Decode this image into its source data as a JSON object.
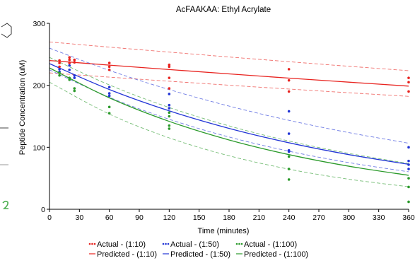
{
  "chart_data": {
    "type": "scatter",
    "title": "AcFAAKAA: Ethyl Acrylate",
    "xlabel": "Time (minutes)",
    "ylabel": "Peptide Concentration (uM)",
    "xlim": [
      0,
      360
    ],
    "ylim": [
      0,
      300
    ],
    "xticks": [
      0,
      30,
      60,
      90,
      120,
      150,
      180,
      210,
      240,
      270,
      300,
      330,
      360
    ],
    "yticks": [
      0,
      100,
      200,
      300
    ],
    "grid": false,
    "legend_position": "bottom",
    "series": [
      {
        "name": "Actual - (1:10)",
        "kind": "points",
        "color": "#e8231f",
        "points": [
          [
            10,
            240
          ],
          [
            10,
            236
          ],
          [
            10,
            230
          ],
          [
            20,
            245
          ],
          [
            20,
            241
          ],
          [
            20,
            236
          ],
          [
            25,
            241
          ],
          [
            25,
            237
          ],
          [
            60,
            236
          ],
          [
            60,
            230
          ],
          [
            60,
            225
          ],
          [
            120,
            233
          ],
          [
            120,
            230
          ],
          [
            120,
            212
          ],
          [
            120,
            195
          ],
          [
            240,
            226
          ],
          [
            240,
            208
          ],
          [
            240,
            190
          ],
          [
            360,
            212
          ],
          [
            360,
            205
          ],
          [
            360,
            190
          ]
        ]
      },
      {
        "name": "Predicted - (1:10)",
        "kind": "fit",
        "color": "#e8231f",
        "x": [
          0,
          60,
          120,
          180,
          240,
          300,
          360
        ],
        "y": [
          240,
          232.6,
          225.4,
          218.4,
          211.6,
          205.1,
          198.7
        ],
        "upper": [
          270,
          261.6,
          253.6,
          245.7,
          238.1,
          230.7,
          223.6
        ],
        "lower": [
          220,
          213.2,
          206.6,
          200.2,
          194.0,
          188.0,
          182.2
        ]
      },
      {
        "name": "Actual - (1:50)",
        "kind": "points",
        "color": "#2235d6",
        "points": [
          [
            10,
            226
          ],
          [
            10,
            222
          ],
          [
            20,
            232
          ],
          [
            20,
            225
          ],
          [
            25,
            216
          ],
          [
            25,
            212
          ],
          [
            60,
            197
          ],
          [
            60,
            187
          ],
          [
            60,
            183
          ],
          [
            120,
            186
          ],
          [
            120,
            168
          ],
          [
            120,
            163
          ],
          [
            240,
            158
          ],
          [
            240,
            122
          ],
          [
            240,
            95
          ],
          [
            240,
            93
          ],
          [
            360,
            100
          ],
          [
            360,
            78
          ],
          [
            360,
            72
          ],
          [
            360,
            65
          ]
        ]
      },
      {
        "name": "Predicted - (1:50)",
        "kind": "fit",
        "color": "#2235d6",
        "x": [
          0,
          60,
          120,
          180,
          240,
          300,
          360
        ],
        "y": [
          235,
          193.2,
          158.8,
          130.5,
          107.3,
          88.2,
          72.5
        ],
        "upper": [
          260,
          224.1,
          193.1,
          166.5,
          143.5,
          123.7,
          106.6
        ],
        "lower": [
          225,
          180.7,
          145.2,
          116.6,
          93.7,
          75.3,
          60.5
        ]
      },
      {
        "name": "Actual - (1:100)",
        "kind": "points",
        "color": "#2b9a2b",
        "points": [
          [
            10,
            220
          ],
          [
            10,
            216
          ],
          [
            20,
            212
          ],
          [
            20,
            209
          ],
          [
            25,
            195
          ],
          [
            25,
            191
          ],
          [
            60,
            165
          ],
          [
            60,
            155
          ],
          [
            120,
            156
          ],
          [
            120,
            150
          ],
          [
            120,
            135
          ],
          [
            120,
            130
          ],
          [
            240,
            85
          ],
          [
            240,
            65
          ],
          [
            240,
            48
          ],
          [
            360,
            50
          ],
          [
            360,
            36
          ],
          [
            360,
            12
          ]
        ]
      },
      {
        "name": "Predicted - (1:100)",
        "kind": "fit",
        "color": "#2b9a2b",
        "x": [
          0,
          60,
          120,
          180,
          240,
          300,
          360
        ],
        "y": [
          228,
          179.8,
          141.8,
          111.8,
          88.2,
          69.5,
          54.8
        ],
        "upper": [
          245,
          200.6,
          164.2,
          134.5,
          110.1,
          90.2,
          73.8
        ],
        "lower": [
          205,
          153.6,
          115.2,
          86.3,
          64.7,
          48.5,
          36.4
        ]
      }
    ],
    "legend": [
      {
        "label": "Actual - (1:10)",
        "style": "dots",
        "color": "#e8231f"
      },
      {
        "label": "Actual - (1:50)",
        "style": "dots",
        "color": "#2235d6"
      },
      {
        "label": "Actual - (1:100)",
        "style": "dots",
        "color": "#2b9a2b"
      },
      {
        "label": "Predicted - (1:10)",
        "style": "line",
        "color": "#e8231f"
      },
      {
        "label": "Predicted - (1:50)",
        "style": "line",
        "color": "#2235d6"
      },
      {
        "label": "Predicted - (1:100)",
        "style": "line",
        "color": "#2b9a2b"
      }
    ]
  }
}
